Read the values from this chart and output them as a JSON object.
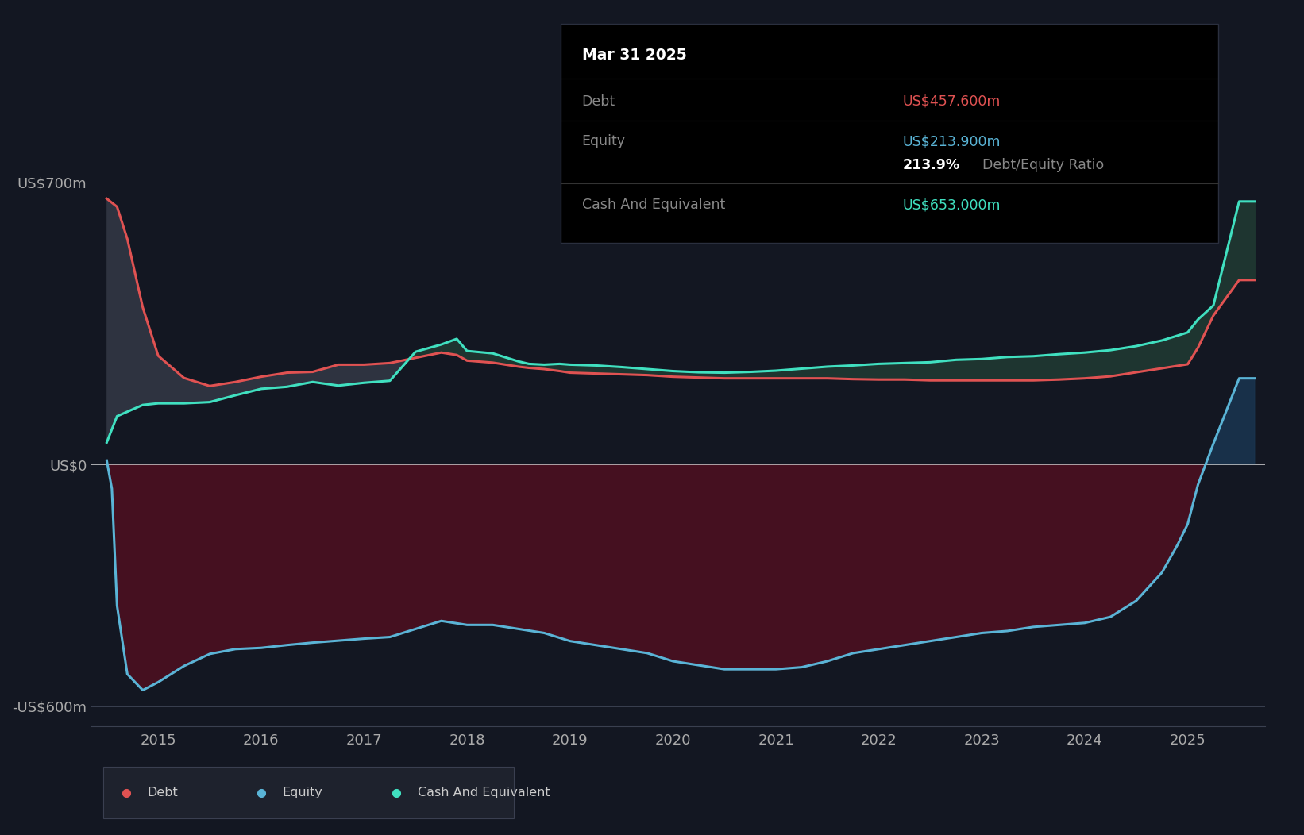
{
  "bg_color": "#131722",
  "ylabel_700": "US$700m",
  "ylabel_0": "US$0",
  "ylabel_neg600": "-US$600m",
  "x_ticks": [
    "2015",
    "2016",
    "2017",
    "2018",
    "2019",
    "2020",
    "2021",
    "2022",
    "2023",
    "2024",
    "2025"
  ],
  "legend_items": [
    {
      "label": "Debt",
      "color": "#e05252"
    },
    {
      "label": "Equity",
      "color": "#5ab4d6"
    },
    {
      "label": "Cash And Equivalent",
      "color": "#40e0c0"
    }
  ],
  "tooltip": {
    "date": "Mar 31 2025",
    "debt_label": "Debt",
    "debt_value": "US$457.600m",
    "equity_label": "Equity",
    "equity_value": "US$213.900m",
    "ratio": "213.9%",
    "ratio_text": "Debt/Equity Ratio",
    "cash_label": "Cash And Equivalent",
    "cash_value": "US$653.000m",
    "debt_color": "#e05252",
    "equity_color": "#5ab4d6",
    "cash_color": "#40e0c0"
  },
  "debt_color": "#e05252",
  "equity_color": "#5ab4d6",
  "cash_color": "#40e0c0",
  "zero_line_color": "#cccccc",
  "grid_color": "#2a2f3e",
  "ylim": [
    -650,
    780
  ],
  "xlim": [
    2013.85,
    2025.25
  ],
  "debt_data": {
    "x": [
      2014.0,
      2014.1,
      2014.2,
      2014.35,
      2014.5,
      2014.75,
      2015.0,
      2015.25,
      2015.5,
      2015.75,
      2016.0,
      2016.25,
      2016.5,
      2016.75,
      2017.0,
      2017.25,
      2017.4,
      2017.5,
      2017.75,
      2018.0,
      2018.1,
      2018.25,
      2018.4,
      2018.5,
      2018.75,
      2019.0,
      2019.25,
      2019.5,
      2019.75,
      2020.0,
      2020.25,
      2020.5,
      2020.75,
      2021.0,
      2021.25,
      2021.5,
      2021.75,
      2022.0,
      2022.25,
      2022.5,
      2022.75,
      2023.0,
      2023.25,
      2023.5,
      2023.75,
      2024.0,
      2024.25,
      2024.5,
      2024.6,
      2024.75,
      2025.0,
      2025.15
    ],
    "y": [
      660,
      640,
      560,
      390,
      270,
      215,
      195,
      205,
      218,
      228,
      230,
      248,
      248,
      252,
      265,
      278,
      272,
      258,
      253,
      243,
      240,
      237,
      232,
      228,
      226,
      224,
      222,
      218,
      216,
      214,
      214,
      214,
      214,
      214,
      212,
      211,
      211,
      209,
      209,
      209,
      209,
      209,
      211,
      214,
      219,
      229,
      239,
      249,
      290,
      370,
      458,
      458
    ]
  },
  "equity_data": {
    "x": [
      2014.0,
      2014.05,
      2014.1,
      2014.2,
      2014.35,
      2014.5,
      2014.75,
      2015.0,
      2015.25,
      2015.5,
      2015.75,
      2016.0,
      2016.25,
      2016.5,
      2016.75,
      2017.0,
      2017.25,
      2017.5,
      2017.75,
      2018.0,
      2018.25,
      2018.5,
      2018.75,
      2019.0,
      2019.25,
      2019.5,
      2019.75,
      2020.0,
      2020.25,
      2020.5,
      2020.75,
      2021.0,
      2021.25,
      2021.5,
      2021.75,
      2022.0,
      2022.25,
      2022.5,
      2022.75,
      2023.0,
      2023.25,
      2023.5,
      2023.75,
      2024.0,
      2024.25,
      2024.4,
      2024.5,
      2024.6,
      2024.75,
      2025.0,
      2025.15
    ],
    "y": [
      10,
      -60,
      -350,
      -520,
      -560,
      -540,
      -500,
      -470,
      -458,
      -455,
      -448,
      -442,
      -437,
      -432,
      -428,
      -408,
      -388,
      -398,
      -398,
      -408,
      -418,
      -438,
      -448,
      -458,
      -468,
      -488,
      -498,
      -508,
      -508,
      -508,
      -503,
      -488,
      -468,
      -458,
      -448,
      -438,
      -428,
      -418,
      -413,
      -403,
      -398,
      -393,
      -378,
      -338,
      -268,
      -200,
      -148,
      -50,
      52,
      214,
      214
    ]
  },
  "cash_data": {
    "x": [
      2014.0,
      2014.1,
      2014.35,
      2014.5,
      2014.75,
      2015.0,
      2015.25,
      2015.5,
      2015.75,
      2016.0,
      2016.25,
      2016.5,
      2016.75,
      2017.0,
      2017.25,
      2017.4,
      2017.5,
      2017.75,
      2018.0,
      2018.1,
      2018.25,
      2018.4,
      2018.5,
      2018.75,
      2019.0,
      2019.25,
      2019.5,
      2019.75,
      2020.0,
      2020.25,
      2020.5,
      2020.75,
      2021.0,
      2021.25,
      2021.5,
      2021.75,
      2022.0,
      2022.25,
      2022.5,
      2022.75,
      2023.0,
      2023.25,
      2023.5,
      2023.75,
      2024.0,
      2024.25,
      2024.5,
      2024.6,
      2024.75,
      2025.0,
      2025.15
    ],
    "y": [
      55,
      120,
      148,
      152,
      152,
      155,
      172,
      188,
      193,
      205,
      196,
      203,
      208,
      280,
      298,
      312,
      282,
      276,
      256,
      250,
      248,
      250,
      248,
      246,
      242,
      237,
      232,
      229,
      228,
      230,
      233,
      238,
      243,
      246,
      250,
      252,
      254,
      260,
      262,
      267,
      269,
      274,
      278,
      284,
      294,
      308,
      328,
      360,
      395,
      653,
      653
    ]
  }
}
